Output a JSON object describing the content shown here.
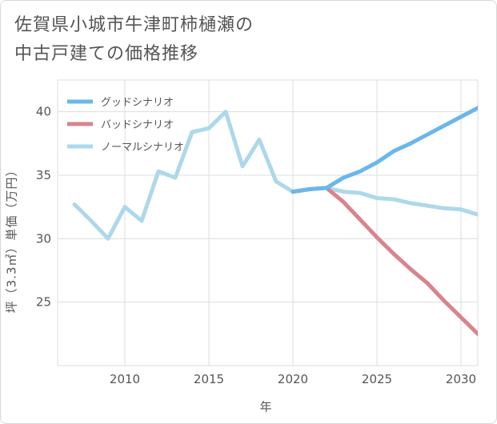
{
  "title": {
    "line1": "佐賀県小城市牛津町柿樋瀬の",
    "line2": "中古戸建ての価格推移"
  },
  "chart_data": {
    "type": "line",
    "xlabel": "年",
    "ylabel": "坪（3.3㎡）単価（万円）",
    "xlim": [
      2006,
      2031
    ],
    "ylim": [
      20,
      42.5
    ],
    "xticks": [
      2010,
      2015,
      2020,
      2025,
      2030
    ],
    "yticks": [
      25,
      30,
      35,
      40
    ],
    "legend_position": "top-left",
    "series": [
      {
        "name": "グッドシナリオ",
        "color": "#6ab7ec",
        "x": [
          2020,
          2021,
          2022,
          2023,
          2024,
          2025,
          2026,
          2027,
          2028,
          2029,
          2030,
          2031
        ],
        "y": [
          33.7,
          33.9,
          34.0,
          34.8,
          35.3,
          36.0,
          36.9,
          37.5,
          38.2,
          38.9,
          39.6,
          40.3
        ]
      },
      {
        "name": "バッドシナリオ",
        "color": "#d9848d",
        "x": [
          2020,
          2021,
          2022,
          2023,
          2024,
          2025,
          2026,
          2027,
          2028,
          2029,
          2030,
          2031
        ],
        "y": [
          33.7,
          33.9,
          34.0,
          32.9,
          31.5,
          30.1,
          28.8,
          27.6,
          26.5,
          25.1,
          23.8,
          22.5
        ]
      },
      {
        "name": "ノーマルシナリオ",
        "color": "#add8ea",
        "x": [
          2007,
          2008,
          2009,
          2010,
          2011,
          2012,
          2013,
          2014,
          2015,
          2016,
          2017,
          2018,
          2019,
          2020,
          2021,
          2022,
          2023,
          2024,
          2025,
          2026,
          2027,
          2028,
          2029,
          2030,
          2031
        ],
        "y": [
          32.7,
          31.4,
          30.0,
          32.5,
          31.4,
          35.3,
          34.8,
          38.4,
          38.7,
          40.0,
          35.7,
          37.8,
          34.5,
          33.7,
          33.9,
          34.0,
          33.7,
          33.6,
          33.2,
          33.1,
          32.8,
          32.6,
          32.4,
          32.3,
          31.9
        ]
      }
    ]
  }
}
